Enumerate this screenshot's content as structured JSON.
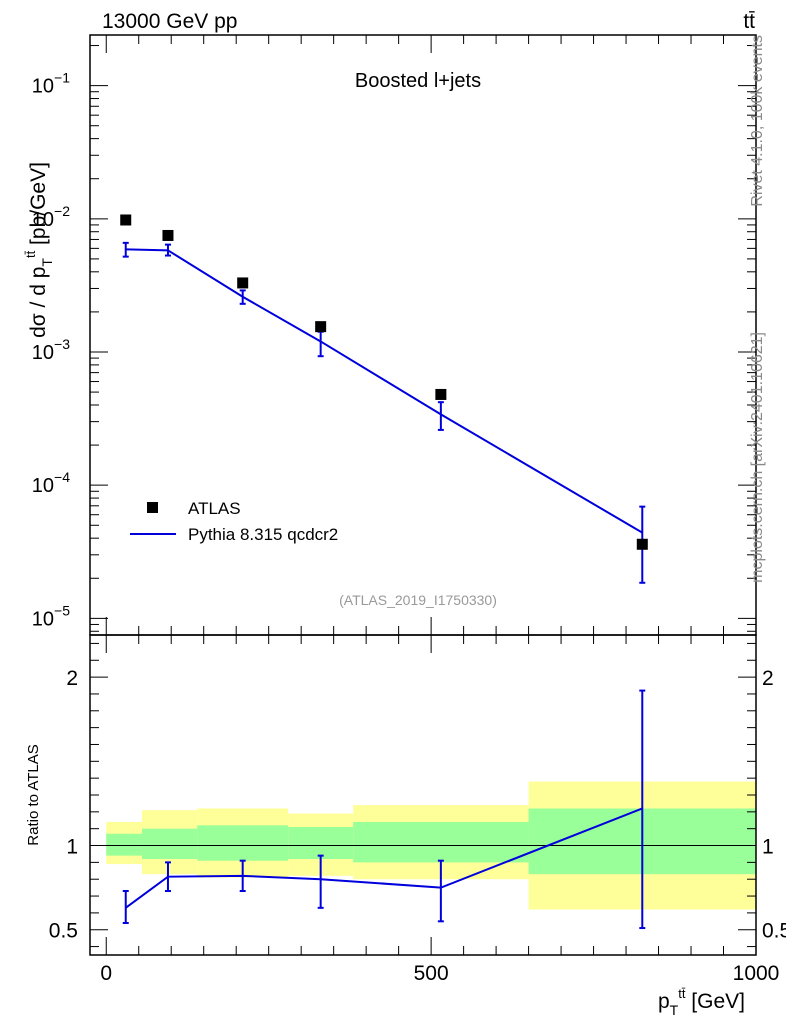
{
  "header": {
    "left_label": "13000 GeV pp",
    "right_label": "tt̄",
    "side_label_top": "Rivet 4.1.0,  100k events",
    "side_label_bottom": "mcplots.cern.ch [arXiv:2401.10621]"
  },
  "chart_data": [
    {
      "type": "scatter",
      "panel": "main",
      "title": "Boosted l+jets",
      "watermark": "(ATLAS_2019_I1750330)",
      "ylabel": "dσ / d p_T^{tt̄} [pb/GeV]",
      "yscale": "log",
      "ylim": [
        7.5e-06,
        0.24
      ],
      "xlim": [
        -25,
        1000
      ],
      "y_ticks": [
        {
          "value": 0.1,
          "label": "10",
          "exp": "−1"
        },
        {
          "value": 0.01,
          "label": "10",
          "exp": "−2"
        },
        {
          "value": 0.001,
          "label": "10",
          "exp": "−3"
        },
        {
          "value": 0.0001,
          "label": "10",
          "exp": "−4"
        },
        {
          "value": 1e-05,
          "label": "10",
          "exp": "−5"
        }
      ],
      "legend": {
        "position": "bottom-left",
        "entries": [
          {
            "name": "ATLAS",
            "marker": "square",
            "color": "#000000"
          },
          {
            "name": "Pythia 8.315 qcdcr2",
            "marker": "line",
            "color": "#0000dd"
          }
        ]
      },
      "series": [
        {
          "name": "ATLAS",
          "color": "#000000",
          "x": [
            30,
            95,
            210,
            330,
            515,
            825
          ],
          "y": [
            0.0098,
            0.0075,
            0.0033,
            0.00155,
            0.00048,
            3.6e-05
          ]
        },
        {
          "name": "Pythia 8.315 qcdcr2",
          "color": "#0000dd",
          "x": [
            30,
            95,
            210,
            330,
            515,
            825
          ],
          "y": [
            0.0059,
            0.0058,
            0.0026,
            0.0012,
            0.00034,
            4.4e-05
          ],
          "y_low": [
            0.0052,
            0.0053,
            0.0023,
            0.00093,
            0.00026,
            1.85e-05
          ],
          "y_high": [
            0.0066,
            0.0064,
            0.0029,
            0.00142,
            0.00042,
            6.9e-05
          ]
        }
      ]
    },
    {
      "type": "line",
      "panel": "ratio",
      "ylabel": "Ratio to ATLAS",
      "xlabel": "p_T^{tt̄} [GeV]",
      "ylim": [
        0.35,
        2.25
      ],
      "xlim": [
        -25,
        1000
      ],
      "x_ticks": [
        0,
        500,
        1000
      ],
      "y_ticks": [
        0.5,
        1,
        2
      ],
      "reference": 1,
      "bands": {
        "edges": [
          0,
          55,
          140,
          280,
          380,
          650,
          1000
        ],
        "inner_low": [
          0.94,
          0.92,
          0.91,
          0.92,
          0.9,
          0.83
        ],
        "inner_high": [
          1.07,
          1.1,
          1.12,
          1.11,
          1.14,
          1.22
        ],
        "outer_low": [
          0.89,
          0.83,
          0.81,
          0.82,
          0.8,
          0.62
        ],
        "outer_high": [
          1.14,
          1.21,
          1.22,
          1.19,
          1.24,
          1.38
        ],
        "inner_color": "#99ff99",
        "outer_color": "#ffff99"
      },
      "series": [
        {
          "name": "Pythia 8.315 qcdcr2",
          "color": "#0000dd",
          "x": [
            30,
            95,
            210,
            330,
            515,
            825
          ],
          "y": [
            0.63,
            0.815,
            0.82,
            0.8,
            0.75,
            1.22
          ],
          "y_low": [
            0.54,
            0.73,
            0.73,
            0.63,
            0.55,
            0.51
          ],
          "y_high": [
            0.73,
            0.9,
            0.91,
            0.94,
            0.91,
            1.92
          ]
        }
      ]
    }
  ]
}
